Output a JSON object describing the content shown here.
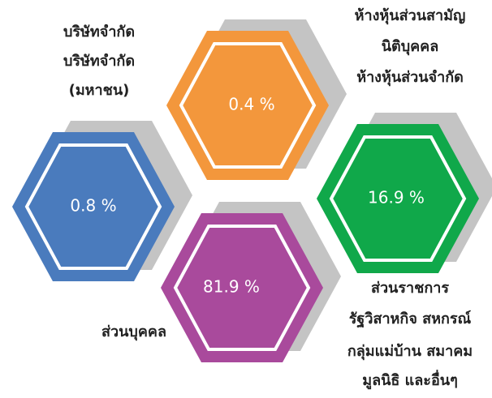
{
  "nodes": [
    {
      "value": "0.8 %",
      "label": [
        "บริษัทจำกัด",
        "บริษัทจำกัด",
        "(มหาชน)"
      ]
    },
    {
      "value": "0.4 %",
      "label": [
        "ห้างหุ้นส่วนสามัญ",
        "นิติบุคคล",
        "ห้างหุ้นส่วนจำกัด"
      ]
    },
    {
      "value": "16.9 %",
      "label": [
        "ส่วนราชการ",
        "รัฐวิสาหกิจ สหกรณ์",
        "กลุ่มแม่บ้าน สมาคม",
        "มูลนิธิ และอื่นๆ"
      ]
    },
    {
      "value": "81.9 %",
      "label": [
        "ส่วนบุคคล"
      ]
    }
  ]
}
